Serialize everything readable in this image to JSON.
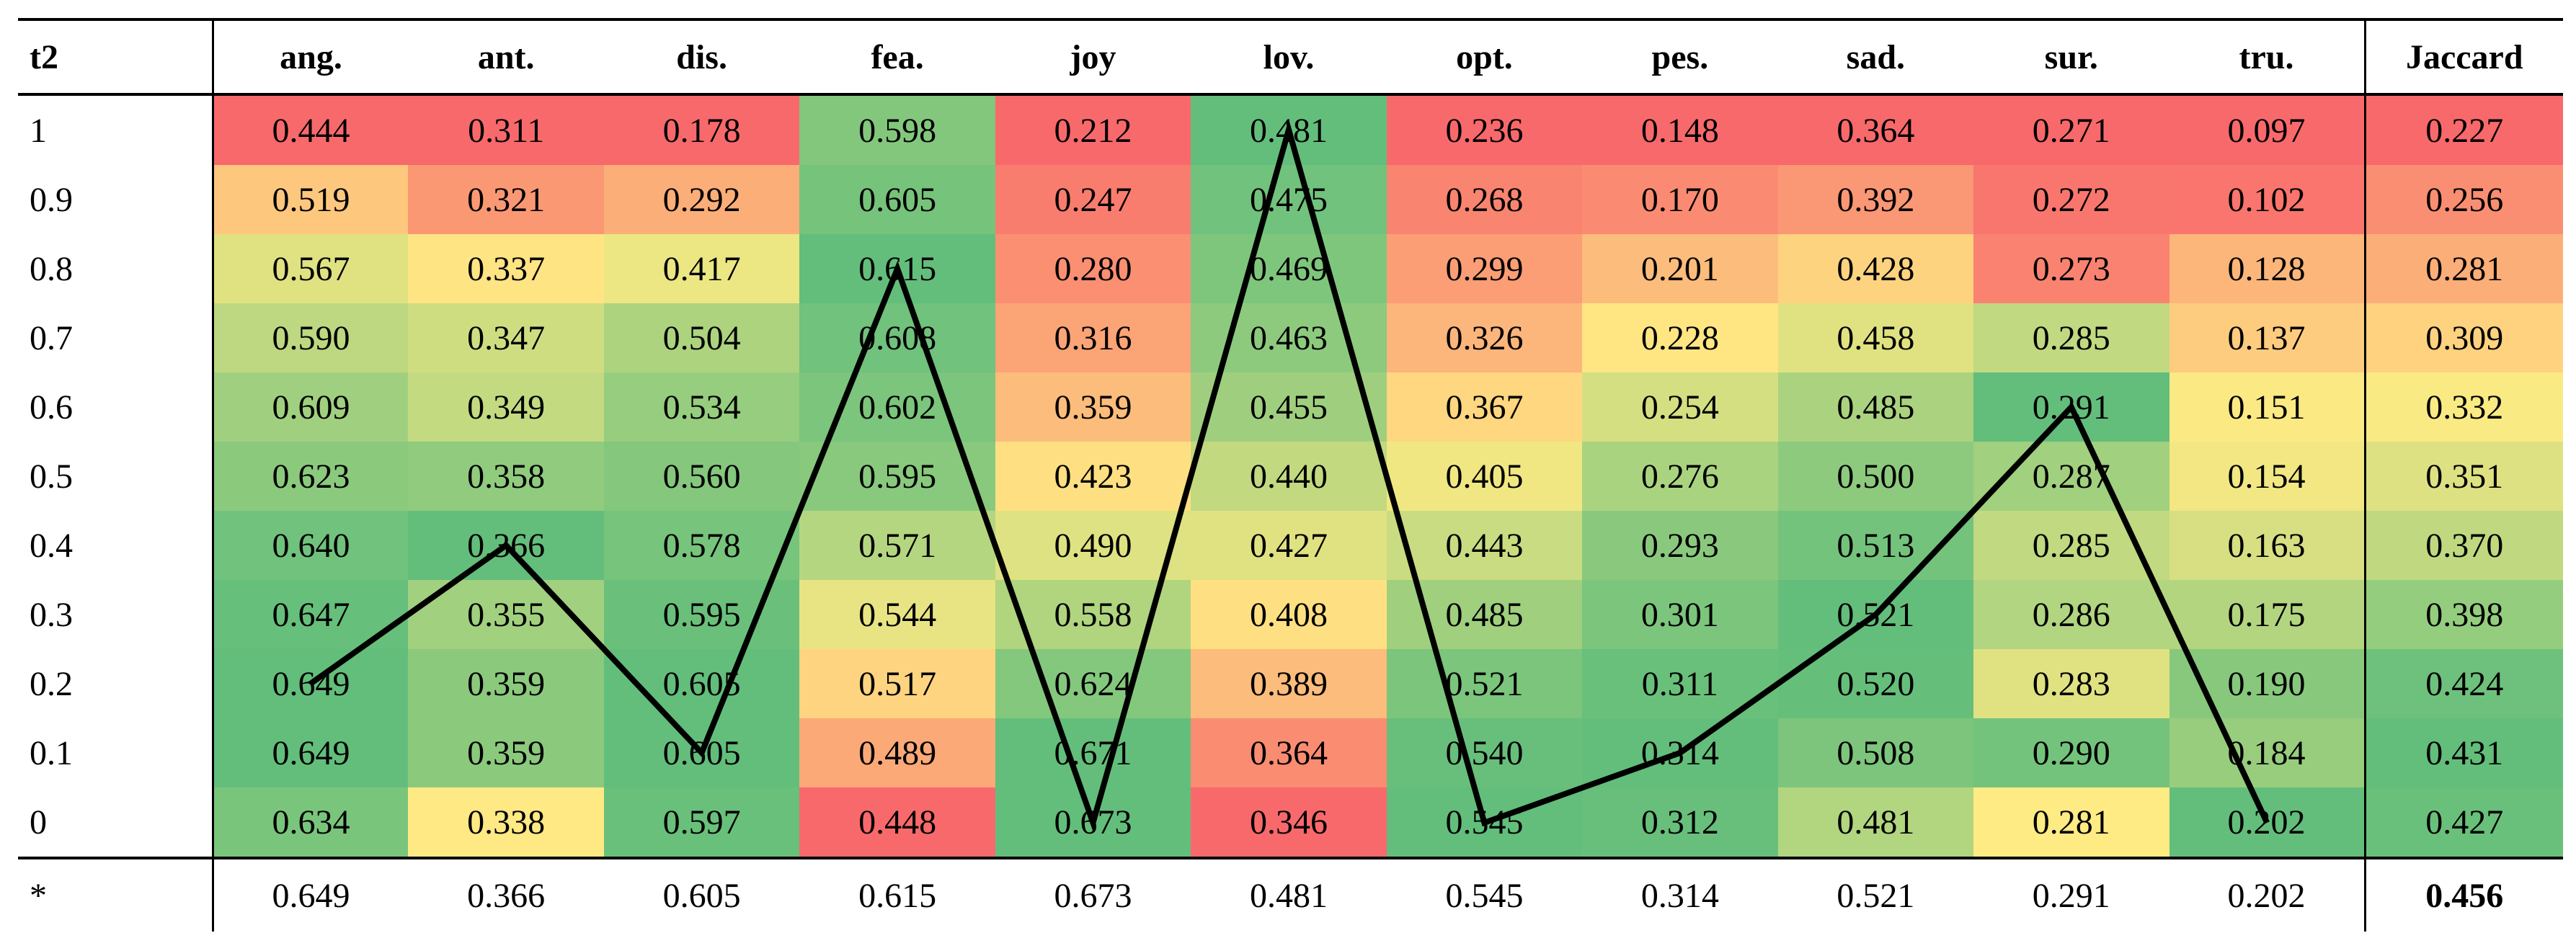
{
  "chart_data": {
    "type": "heatmap",
    "row_header": "t2",
    "columns": [
      "ang.",
      "ant.",
      "dis.",
      "fea.",
      "joy",
      "lov.",
      "opt.",
      "pes.",
      "sad.",
      "sur.",
      "tru.",
      "Jaccard"
    ],
    "rows": [
      {
        "label": "1",
        "values": [
          "0.444",
          "0.311",
          "0.178",
          "0.598",
          "0.212",
          "0.481",
          "0.236",
          "0.148",
          "0.364",
          "0.271",
          "0.097",
          "0.227"
        ]
      },
      {
        "label": "0.9",
        "values": [
          "0.519",
          "0.321",
          "0.292",
          "0.605",
          "0.247",
          "0.475",
          "0.268",
          "0.170",
          "0.392",
          "0.272",
          "0.102",
          "0.256"
        ]
      },
      {
        "label": "0.8",
        "values": [
          "0.567",
          "0.337",
          "0.417",
          "0.615",
          "0.280",
          "0.469",
          "0.299",
          "0.201",
          "0.428",
          "0.273",
          "0.128",
          "0.281"
        ]
      },
      {
        "label": "0.7",
        "values": [
          "0.590",
          "0.347",
          "0.504",
          "0.608",
          "0.316",
          "0.463",
          "0.326",
          "0.228",
          "0.458",
          "0.285",
          "0.137",
          "0.309"
        ]
      },
      {
        "label": "0.6",
        "values": [
          "0.609",
          "0.349",
          "0.534",
          "0.602",
          "0.359",
          "0.455",
          "0.367",
          "0.254",
          "0.485",
          "0.291",
          "0.151",
          "0.332"
        ]
      },
      {
        "label": "0.5",
        "values": [
          "0.623",
          "0.358",
          "0.560",
          "0.595",
          "0.423",
          "0.440",
          "0.405",
          "0.276",
          "0.500",
          "0.287",
          "0.154",
          "0.351"
        ]
      },
      {
        "label": "0.4",
        "values": [
          "0.640",
          "0.366",
          "0.578",
          "0.571",
          "0.490",
          "0.427",
          "0.443",
          "0.293",
          "0.513",
          "0.285",
          "0.163",
          "0.370"
        ]
      },
      {
        "label": "0.3",
        "values": [
          "0.647",
          "0.355",
          "0.595",
          "0.544",
          "0.558",
          "0.408",
          "0.485",
          "0.301",
          "0.521",
          "0.286",
          "0.175",
          "0.398"
        ]
      },
      {
        "label": "0.2",
        "values": [
          "0.649",
          "0.359",
          "0.605",
          "0.517",
          "0.624",
          "0.389",
          "0.521",
          "0.311",
          "0.520",
          "0.283",
          "0.190",
          "0.424"
        ]
      },
      {
        "label": "0.1",
        "values": [
          "0.649",
          "0.359",
          "0.605",
          "0.489",
          "0.671",
          "0.364",
          "0.540",
          "0.314",
          "0.508",
          "0.290",
          "0.184",
          "0.431"
        ]
      },
      {
        "label": "0",
        "values": [
          "0.634",
          "0.338",
          "0.597",
          "0.448",
          "0.673",
          "0.346",
          "0.545",
          "0.312",
          "0.481",
          "0.281",
          "0.202",
          "0.427"
        ]
      }
    ],
    "best_row": {
      "label": "*",
      "values": [
        "0.649",
        "0.366",
        "0.605",
        "0.615",
        "0.673",
        "0.481",
        "0.545",
        "0.314",
        "0.521",
        "0.291",
        "0.202",
        "0.456"
      ]
    },
    "colors": {
      "low": "#f8696b",
      "mid": "#ffeb84",
      "high": "#63be7b"
    },
    "best_line": {
      "points": [
        {
          "column": "ang.",
          "row": "0.2"
        },
        {
          "column": "ant.",
          "row": "0.4"
        },
        {
          "column": "dis.",
          "row": "0.1"
        },
        {
          "column": "fea.",
          "row": "0.8"
        },
        {
          "column": "joy",
          "row": "0"
        },
        {
          "column": "lov.",
          "row": "1"
        },
        {
          "column": "opt.",
          "row": "0"
        },
        {
          "column": "pes.",
          "row": "0.1"
        },
        {
          "column": "sad.",
          "row": "0.3"
        },
        {
          "column": "sur.",
          "row": "0.6"
        },
        {
          "column": "tru.",
          "row": "0"
        }
      ],
      "color": "#000000"
    }
  }
}
